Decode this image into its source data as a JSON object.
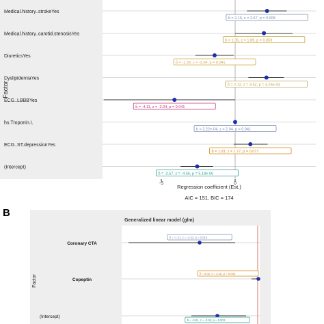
{
  "panel_b_letter": "B",
  "chart_data": [
    {
      "type": "forest",
      "ylabel": "Factor",
      "xlabel": "Regression coefficient (Est.)",
      "footer": "AIC = 151, BIC = 174",
      "x_ticks": [
        -5,
        0
      ],
      "x_tick_labels": [
        "-5",
        "0"
      ],
      "reference_line": 0,
      "grid": true,
      "rows": [
        {
          "label": "Medical.history..strokeYes",
          "estimate": 2.16,
          "ci": [
            0.8,
            3.5
          ],
          "annotation": "b̂ = 2.16,  z = 2.67,  p = 0.008",
          "color": "#7b8bb0"
        },
        {
          "label": "Medical.history..carotid.stenosisYes",
          "estimate": 1.95,
          "ci": [
            0.0,
            3.9
          ],
          "annotation": "b̂ = 1.95,  z = 1.89,  p = 0.059",
          "color": "#c4a23a"
        },
        {
          "label": "DiureticsYes",
          "estimate": -1.39,
          "ci": [
            -2.7,
            -0.1
          ],
          "annotation": "b̂ = -1.39,  z = -2.04,  p = 0.041",
          "color": "#d4a84a"
        },
        {
          "label": "DyslipidemiaYes",
          "estimate": 2.12,
          "ci": [
            0.9,
            3.3
          ],
          "annotation": "b̂ = 2.12,  z = 3.52,  p = 4.25e-04",
          "color": "#b8a45a"
        },
        {
          "label": "ECG..LBBBYes",
          "estimate": -4.11,
          "ci": [
            -8.9,
            0.0
          ],
          "annotation": "b̂ = -4.11,  z = -2.04,  p = 0.041",
          "color": "#c0337a"
        },
        {
          "label": "hs.Troponin.I.",
          "estimate": 0.000222,
          "ci": [
            -0.05,
            0.05
          ],
          "annotation": "b̂ = 2.22e-04,  z = 2.04,  p = 0.041",
          "color": "#7b8bb0"
        },
        {
          "label": "ECG..ST.depressionYes",
          "estimate": 1.03,
          "ci": [
            -0.1,
            2.2
          ],
          "annotation": "b̂ = 1.03,  z = 1.77,  p = 0.077",
          "color": "#d4881a"
        },
        {
          "label": "(Intercept)",
          "estimate": -2.57,
          "ci": [
            -3.7,
            -1.5
          ],
          "annotation": "b̂ = -2.57,  z = -4.56,  p = 5.18e-06",
          "color": "#2a9d8f"
        }
      ]
    },
    {
      "type": "forest",
      "title": "Generalized linear model (glm)",
      "ylabel": "Factor",
      "reference_line": 0,
      "grid": true,
      "rows": [
        {
          "label": "Coronary CTA",
          "estimate": -1.31,
          "ci": [
            -3.2,
            0.6
          ],
          "annotation": "b̂ = -1.31,  z = -2.42,  p = 0.016",
          "color": "#7b8bb0"
        },
        {
          "label": "Copeptin",
          "estimate": 0.02,
          "ci": [
            0.003,
            0.04
          ],
          "annotation": "b̂ = 0.02,  z = 2.16,  p = 0.032",
          "color": "#d4881a"
        },
        {
          "label": "(Intercept)",
          "estimate": -0.81,
          "ci": [
            -1.6,
            0.0
          ],
          "annotation": "b̂ = -0.81,  z = -3.00,  p = 0.003",
          "color": "#2a9d8f"
        }
      ]
    }
  ]
}
